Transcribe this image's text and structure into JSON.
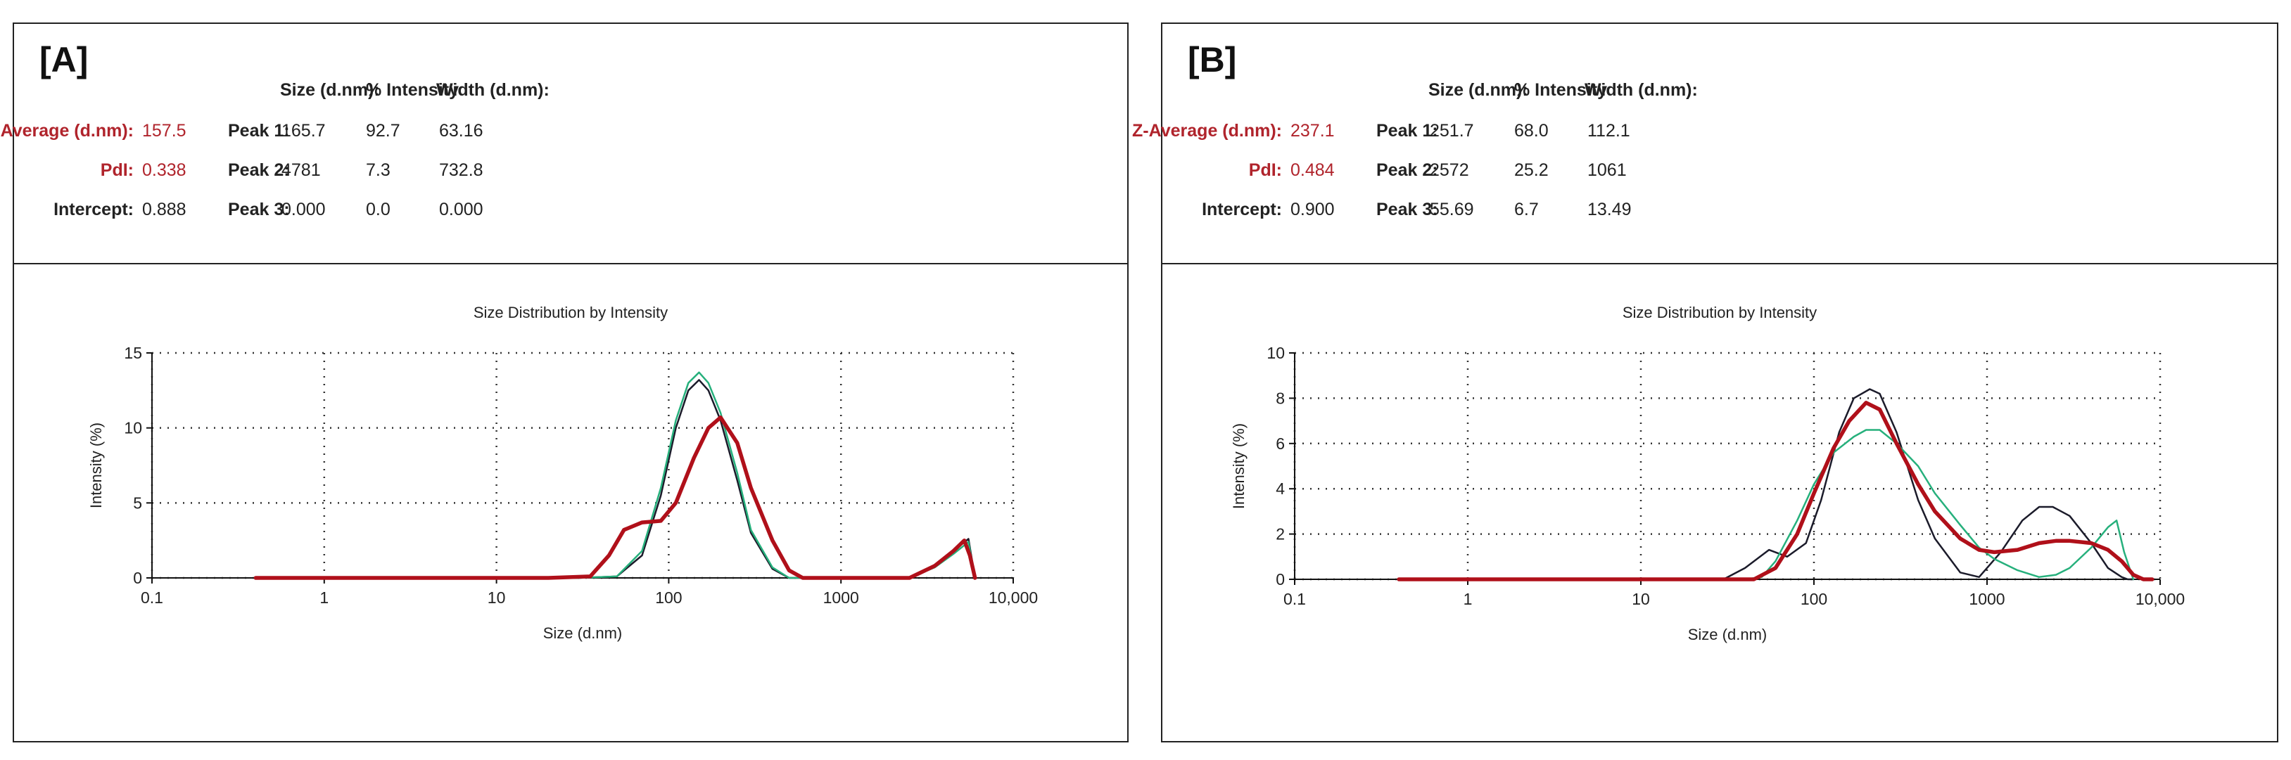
{
  "panels": [
    {
      "label": "[A]",
      "summary": {
        "z_average_label": "Z-Average (d.nm):",
        "z_average_value": "157.5",
        "pdi_label": "PdI:",
        "pdi_value": "0.338",
        "intercept_label": "Intercept:",
        "intercept_value": "0.888"
      },
      "peak_headers": [
        "Size (d.nm):",
        "% Intensity",
        "Width (d.nm):"
      ],
      "peaks": [
        {
          "label": "Peak 1:",
          "size": "165.7",
          "intensity": "92.7",
          "width": "63.16"
        },
        {
          "label": "Peak 2:",
          "size": "4781",
          "intensity": "7.3",
          "width": "732.8"
        },
        {
          "label": "Peak 3:",
          "size": "0.000",
          "intensity": "0.0",
          "width": "0.000"
        }
      ]
    },
    {
      "label": "[B]",
      "summary": {
        "z_average_label": "Z-Average (d.nm):",
        "z_average_value": "237.1",
        "pdi_label": "PdI:",
        "pdi_value": "0.484",
        "intercept_label": "Intercept:",
        "intercept_value": "0.900"
      },
      "peak_headers": [
        "Size (d.nm):",
        "% Intensity",
        "Width (d.nm):"
      ],
      "peaks": [
        {
          "label": "Peak 1:",
          "size": "251.7",
          "intensity": "68.0",
          "width": "112.1"
        },
        {
          "label": "Peak 2:",
          "size": "2572",
          "intensity": "25.2",
          "width": "1061"
        },
        {
          "label": "Peak 3:",
          "size": "55.69",
          "intensity": "6.7",
          "width": "13.49"
        }
      ]
    }
  ],
  "chart_data": [
    {
      "type": "line",
      "title": "Size Distribution by Intensity",
      "xlabel": "Size (d.nm)",
      "ylabel": "Intensity (%)",
      "xscale": "log",
      "xlim": [
        0.1,
        10000
      ],
      "ylim": [
        0,
        15
      ],
      "xticks": [
        0.1,
        1,
        10,
        100,
        1000,
        10000
      ],
      "xtick_labels": [
        "0.1",
        "1",
        "10",
        "100",
        "1000",
        "10,000"
      ],
      "yticks": [
        0,
        5,
        10,
        15
      ],
      "ytick_labels": [
        "0",
        "5",
        "10",
        "15"
      ],
      "grid": true,
      "series": [
        {
          "name": "red",
          "color": "#b0101a",
          "x": [
            0.4,
            20,
            35,
            45,
            55,
            70,
            90,
            110,
            140,
            170,
            200,
            250,
            300,
            400,
            500,
            600,
            2500,
            3500,
            4500,
            5200,
            5600,
            6000
          ],
          "y": [
            0,
            0,
            0.1,
            1.5,
            3.2,
            3.7,
            3.8,
            5.0,
            8.0,
            10.0,
            10.7,
            9.0,
            6.0,
            2.5,
            0.5,
            0,
            0,
            0.8,
            1.8,
            2.5,
            1.5,
            0
          ]
        },
        {
          "name": "black",
          "color": "#1b1b2a",
          "x": [
            0.4,
            30,
            50,
            70,
            90,
            110,
            130,
            150,
            170,
            200,
            250,
            300,
            400,
            500,
            2500,
            3500,
            4500,
            5500,
            6000
          ],
          "y": [
            0,
            0,
            0.1,
            1.5,
            5.5,
            10.0,
            12.5,
            13.2,
            12.5,
            10.5,
            6.5,
            3.0,
            0.6,
            0,
            0,
            0.8,
            1.8,
            2.6,
            0
          ]
        },
        {
          "name": "green",
          "color": "#26b07c",
          "x": [
            0.4,
            30,
            50,
            70,
            90,
            110,
            130,
            150,
            170,
            200,
            250,
            300,
            400,
            500,
            2500,
            3500,
            4500,
            5500,
            6000
          ],
          "y": [
            0,
            0,
            0.1,
            1.8,
            6.0,
            10.5,
            13.0,
            13.7,
            13.0,
            11.0,
            7.0,
            3.2,
            0.7,
            0,
            0,
            0.7,
            1.6,
            2.4,
            0
          ]
        }
      ]
    },
    {
      "type": "line",
      "title": "Size Distribution by Intensity",
      "xlabel": "Size (d.nm)",
      "ylabel": "Intensity (%)",
      "xscale": "log",
      "xlim": [
        0.1,
        10000
      ],
      "ylim": [
        0,
        10
      ],
      "xticks": [
        0.1,
        1,
        10,
        100,
        1000,
        10000
      ],
      "xtick_labels": [
        "0.1",
        "1",
        "10",
        "100",
        "1000",
        "10,000"
      ],
      "yticks": [
        0,
        2,
        4,
        6,
        8,
        10
      ],
      "ytick_labels": [
        "0",
        "2",
        "4",
        "6",
        "8",
        "10"
      ],
      "grid": true,
      "series": [
        {
          "name": "red",
          "color": "#b0101a",
          "x": [
            0.4,
            30,
            45,
            60,
            80,
            100,
            130,
            160,
            200,
            240,
            300,
            400,
            500,
            700,
            900,
            1100,
            1500,
            2000,
            2500,
            3000,
            4000,
            5000,
            6000,
            7000,
            8000,
            9000
          ],
          "y": [
            0,
            0,
            0,
            0.5,
            2.0,
            3.8,
            5.8,
            7.0,
            7.8,
            7.5,
            6.0,
            4.2,
            3.0,
            1.8,
            1.3,
            1.2,
            1.3,
            1.6,
            1.7,
            1.7,
            1.6,
            1.3,
            0.8,
            0.2,
            0,
            0
          ]
        },
        {
          "name": "black",
          "color": "#1b1b2a",
          "x": [
            0.4,
            30,
            40,
            55,
            70,
            90,
            110,
            140,
            170,
            210,
            240,
            300,
            400,
            500,
            700,
            900,
            1200,
            1600,
            2000,
            2400,
            3000,
            4000,
            5000,
            6000,
            6500,
            7000
          ],
          "y": [
            0,
            0,
            0.5,
            1.3,
            1.0,
            1.6,
            3.5,
            6.5,
            8.0,
            8.4,
            8.2,
            6.5,
            3.5,
            1.8,
            0.3,
            0.1,
            1.2,
            2.6,
            3.2,
            3.2,
            2.8,
            1.6,
            0.5,
            0.1,
            0,
            0
          ]
        },
        {
          "name": "green",
          "color": "#26b07c",
          "x": [
            0.4,
            40,
            50,
            60,
            80,
            100,
            130,
            170,
            200,
            240,
            300,
            400,
            500,
            700,
            900,
            1100,
            1500,
            2000,
            2500,
            3000,
            4000,
            5000,
            5600,
            6200,
            7000
          ],
          "y": [
            0,
            0,
            0.1,
            0.8,
            2.6,
            4.2,
            5.6,
            6.3,
            6.6,
            6.6,
            6.0,
            5.0,
            3.8,
            2.4,
            1.4,
            0.9,
            0.4,
            0.1,
            0.2,
            0.5,
            1.4,
            2.3,
            2.6,
            1.2,
            0
          ]
        }
      ]
    }
  ]
}
